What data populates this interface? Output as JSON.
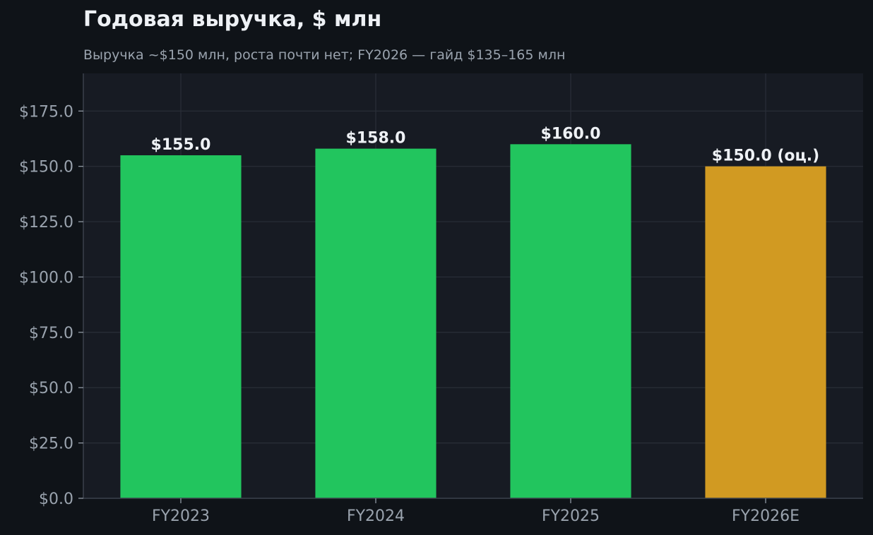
{
  "chart_data": {
    "type": "bar",
    "title": "Годовая выручка, $ млн",
    "subtitle": "Выручка ~$150 млн, роста почти нет; FY2026 — гайд $135–165 млн",
    "xlabel": "",
    "ylabel": "",
    "categories": [
      "FY2023",
      "FY2024",
      "FY2025",
      "FY2026E"
    ],
    "values": [
      155.0,
      158.0,
      160.0,
      150.0
    ],
    "value_labels": [
      "$155.0",
      "$158.0",
      "$160.0",
      "$150.0 (оц.)"
    ],
    "ylim": [
      0,
      192
    ],
    "y_ticks": [
      0,
      25,
      50,
      75,
      100,
      125,
      150,
      175
    ],
    "y_tick_labels": [
      "$0.0",
      "$25.0",
      "$50.0",
      "$75.0",
      "$100.0",
      "$125.0",
      "$150.0",
      "$175.0"
    ],
    "grid": true,
    "legend": "none",
    "colors": {
      "actual": "#22c55e",
      "estimate": "#d19a22",
      "page_background": "#0f1318",
      "plot_background": "#171b23",
      "grid": "#2a2f38",
      "axis": "#3a404a",
      "text": "#eef1f5",
      "muted_text": "#9aa3ae"
    },
    "bar_styles": [
      "actual",
      "actual",
      "actual",
      "estimate"
    ]
  }
}
